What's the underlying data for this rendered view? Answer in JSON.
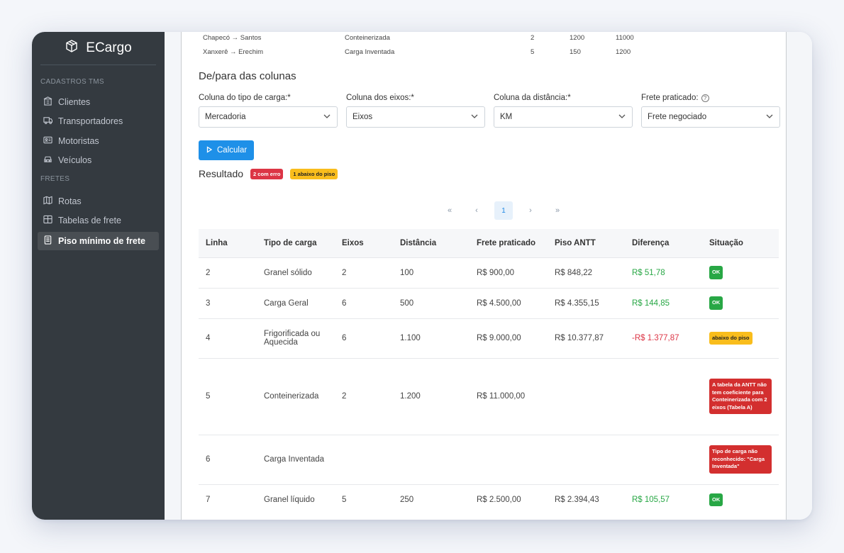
{
  "brand": {
    "name": "ECargo",
    "icon": "box-icon"
  },
  "sidebar": {
    "cadastros_header": "CADASTROS TMS",
    "cadastros": [
      {
        "label": "Clientes",
        "icon": "building-icon"
      },
      {
        "label": "Transportadores",
        "icon": "truck-icon"
      },
      {
        "label": "Motoristas",
        "icon": "id-card-icon"
      },
      {
        "label": "Veículos",
        "icon": "car-icon"
      }
    ],
    "fretes_header": "FRETES",
    "fretes": [
      {
        "label": "Rotas",
        "icon": "map-icon"
      },
      {
        "label": "Tabelas de frete",
        "icon": "table-icon"
      },
      {
        "label": "Piso mínimo de frete",
        "icon": "document-icon",
        "active": true
      }
    ]
  },
  "preview_rows": [
    {
      "rota": "Chapecó → Santos",
      "tipo": "Conteinerizada",
      "eixos": "2",
      "km": "1200",
      "frete": "11000"
    },
    {
      "rota": "Xanxerê → Erechim",
      "tipo": "Carga Inventada",
      "eixos": "5",
      "km": "150",
      "frete": "1200"
    }
  ],
  "mapping": {
    "title": "De/para das colunas",
    "fields": [
      {
        "label": "Coluna do tipo de carga:*",
        "value": "Mercadoria"
      },
      {
        "label": "Coluna dos eixos:*",
        "value": "Eixos"
      },
      {
        "label": "Coluna da distância:*",
        "value": "KM"
      },
      {
        "label": "Frete praticado:",
        "value": "Frete negociado",
        "help": true
      }
    ]
  },
  "calc_button": "Calcular",
  "result": {
    "title": "Resultado",
    "badge_error": "2 com erro",
    "badge_below": "1 abaixo do piso"
  },
  "pager": {
    "first": "«",
    "prev": "‹",
    "current": "1",
    "next": "›",
    "last": "»"
  },
  "table": {
    "headers": [
      "Linha",
      "Tipo de carga",
      "Eixos",
      "Distância",
      "Frete praticado",
      "Piso ANTT",
      "Diferença",
      "Situação"
    ],
    "rows": [
      {
        "linha": "2",
        "tipo": "Granel sólido",
        "eixos": "2",
        "dist": "100",
        "frete": "R$ 900,00",
        "piso": "R$ 848,22",
        "dif": "R$ 51,78",
        "dif_type": "pos",
        "status": "OK",
        "status_type": "ok"
      },
      {
        "linha": "3",
        "tipo": "Carga Geral",
        "eixos": "6",
        "dist": "500",
        "frete": "R$ 4.500,00",
        "piso": "R$ 4.355,15",
        "dif": "R$ 144,85",
        "dif_type": "pos",
        "status": "OK",
        "status_type": "ok"
      },
      {
        "linha": "4",
        "tipo": "Frigorificada ou Aquecida",
        "eixos": "6",
        "dist": "1.100",
        "frete": "R$ 9.000,00",
        "piso": "R$ 10.377,87",
        "dif": "-R$ 1.377,87",
        "dif_type": "neg",
        "status": "abaixo do piso",
        "status_type": "warn"
      },
      {
        "linha": "5",
        "tipo": "Conteinerizada",
        "eixos": "2",
        "dist": "1.200",
        "frete": "R$ 11.000,00",
        "piso": "",
        "dif": "",
        "dif_type": "",
        "status": "A tabela da ANTT não tem coeficiente para Conteinerizada com 2 eixos (Tabela A)",
        "status_type": "err"
      },
      {
        "linha": "6",
        "tipo": "Carga Inventada",
        "eixos": "",
        "dist": "",
        "frete": "",
        "piso": "",
        "dif": "",
        "dif_type": "",
        "status": "Tipo de carga não reconhecido: \"Carga Inventada\"",
        "status_type": "err"
      },
      {
        "linha": "7",
        "tipo": "Granel líquido",
        "eixos": "5",
        "dist": "250",
        "frete": "R$ 2.500,00",
        "piso": "R$ 2.394,43",
        "dif": "R$ 105,57",
        "dif_type": "pos",
        "status": "OK",
        "status_type": "ok"
      }
    ]
  },
  "colors": {
    "sidebar": "#343a40",
    "primary": "#1e90e8",
    "ok": "#28a745",
    "warn": "#f9bd1c",
    "error": "#dc3545"
  }
}
